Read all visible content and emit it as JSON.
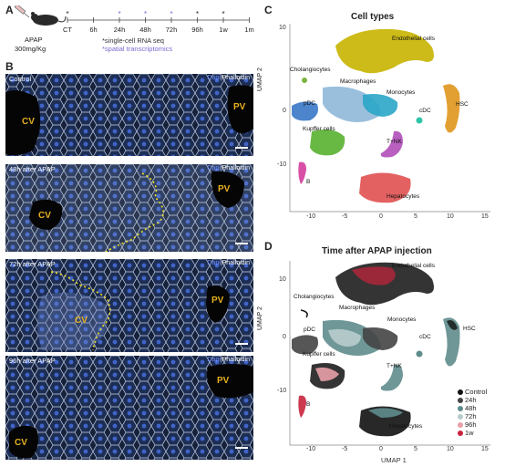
{
  "panel_a": {
    "letter": "A",
    "dose_line1": "APAP",
    "dose_line2": "300mg/Kg",
    "timepoints": [
      "CT",
      "6h",
      "24h",
      "48h",
      "72h",
      "96h",
      "1w",
      "1m"
    ],
    "legend_sc": "*single-cell RNA seq",
    "legend_spatial": "*spatial transcriptomics"
  },
  "panel_b": {
    "letter": "B",
    "stain_dapi": "Dapi",
    "stain_sep": "|",
    "stain_phal": "Phalloidin",
    "panels": [
      {
        "label": "Control",
        "cv": "CV",
        "pv": "PV"
      },
      {
        "label": "48h after APAP",
        "cv": "CV",
        "pv": "PV"
      },
      {
        "label": "72h after APAP",
        "cv": "CV",
        "pv": "PV"
      },
      {
        "label": "96h after APAP",
        "cv": "CV",
        "pv": "PV"
      }
    ]
  },
  "panel_c": {
    "letter": "C",
    "title": "Cell types",
    "ylabel": "UMAP 2",
    "x_ticks": [
      "-10",
      "-5",
      "0",
      "5",
      "10",
      "15"
    ],
    "y_ticks": [
      "10",
      "0",
      "-10"
    ],
    "clusters": {
      "endothelial": "Endothelial cells",
      "cholangiocytes": "Cholangiocytes",
      "macrophages": "Macrophages",
      "monocytes": "Monocytes",
      "pdc": "pDC",
      "cdc": "cDC",
      "hsc": "HSC",
      "kupffer": "Kupffer cells",
      "tnk": "T+NK",
      "b": "B",
      "hepatocytes": "Hepatocytes"
    }
  },
  "panel_d": {
    "letter": "D",
    "title": "Time after APAP injection",
    "xlabel": "UMAP 1",
    "ylabel": "UMAP 2",
    "x_ticks": [
      "-10",
      "-5",
      "0",
      "5",
      "10",
      "15"
    ],
    "y_ticks": [
      "10",
      "0",
      "-10"
    ],
    "clusters": {
      "endothelial": "Endothelial cells",
      "cholangiocytes": "Cholangiocytes",
      "macrophages": "Macrophages",
      "monocytes": "Monocytes",
      "pdc": "pDC",
      "cdc": "cDC",
      "hsc": "HSC",
      "kupffer": "Kupffer cells",
      "tnk": "T+NK",
      "b": "B",
      "hepatocytes": "Hepatocytes"
    },
    "legend": [
      {
        "label": "Control",
        "color": "#111111"
      },
      {
        "label": "24h",
        "color": "#444444"
      },
      {
        "label": "48h",
        "color": "#5f8c8c"
      },
      {
        "label": "72h",
        "color": "#b9cccc"
      },
      {
        "label": "96h",
        "color": "#e8a0a8"
      },
      {
        "label": "1w",
        "color": "#c8243c"
      }
    ]
  },
  "colors": {
    "endothelial": "#c8b400",
    "cholangiocytes": "#7cb342",
    "macrophages": "#8fb8d8",
    "monocytes": "#2aa6c8",
    "pdc": "#3a78c8",
    "cdc": "#2ec4a8",
    "hsc": "#e0961c",
    "kupffer": "#58b030",
    "tnk": "#b04eb8",
    "b": "#d43c9c",
    "hepatocytes": "#e05050",
    "spatial_star": "#7a6ad0"
  }
}
